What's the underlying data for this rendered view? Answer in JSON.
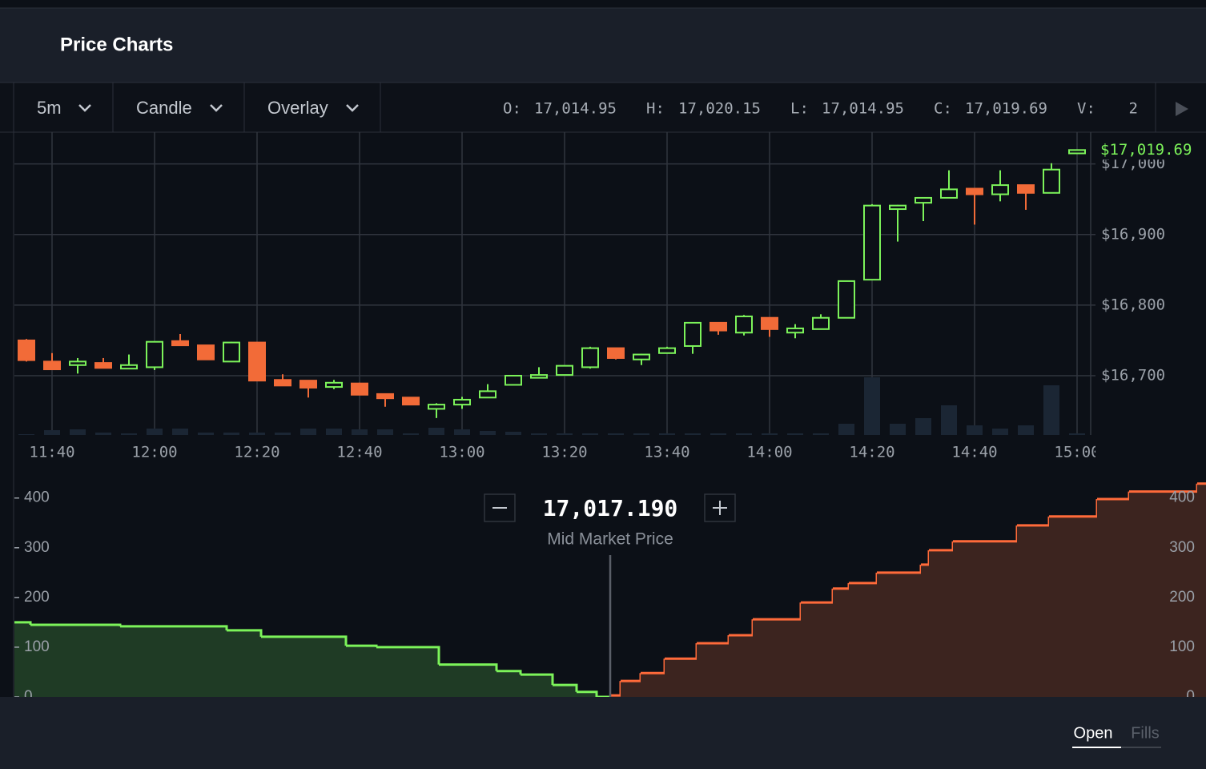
{
  "header": {
    "title": "Price Charts"
  },
  "toolbar": {
    "interval": "5m",
    "chart_type": "Candle",
    "overlay": "Overlay",
    "ohlcv": [
      {
        "key": "O:",
        "value": "17,014.95"
      },
      {
        "key": "H:",
        "value": "17,020.15"
      },
      {
        "key": "L:",
        "value": "17,014.95"
      },
      {
        "key": "C:",
        "value": "17,019.69"
      },
      {
        "key": "V:",
        "value": "2"
      }
    ]
  },
  "chart_data": [
    {
      "type": "candlestick",
      "categories": [
        null,
        "11:40",
        null,
        null,
        null,
        "12:00",
        null,
        null,
        null,
        "12:20",
        null,
        null,
        null,
        "12:40",
        null,
        null,
        null,
        "13:00",
        null,
        null,
        null,
        "13:20",
        null,
        null,
        null,
        "13:40",
        null,
        null,
        null,
        "14:00",
        null,
        null,
        null,
        "14:20",
        null,
        null,
        null,
        "14:40",
        null,
        null,
        null,
        "15:00"
      ],
      "open": [
        16750,
        16720,
        16715,
        16718,
        16710,
        16712,
        16749,
        16743,
        16720,
        16747,
        16694,
        16693,
        16684,
        16689,
        16674,
        16669,
        16653,
        16659,
        16669,
        16687,
        16697,
        16701,
        16712,
        16739,
        16723,
        16732,
        16742,
        16775,
        16761,
        16782,
        16761,
        16766,
        16782,
        16836,
        16936,
        16945,
        16952,
        16965,
        16957,
        16970,
        16959,
        17014.95
      ],
      "high": [
        16752,
        16732,
        16725,
        16725,
        16730,
        16748,
        16759,
        16743,
        16748,
        16747,
        16702,
        16693,
        16694,
        16690,
        16674,
        16669,
        16661,
        16670,
        16688,
        16700,
        16712,
        16714,
        16741,
        16739,
        16731,
        16741,
        16775,
        16775,
        16786,
        16782,
        16773,
        16787,
        16834,
        16943,
        16942,
        16952,
        16991,
        16965,
        16991,
        16970,
        17001,
        17020.15
      ],
      "low": [
        16720,
        16709,
        16703,
        16711,
        16710,
        16708,
        16743,
        16723,
        16720,
        16693,
        16686,
        16669,
        16681,
        16673,
        16656,
        16659,
        16640,
        16653,
        16669,
        16687,
        16697,
        16701,
        16710,
        16723,
        16715,
        16732,
        16731,
        16758,
        16757,
        16755,
        16753,
        16766,
        16782,
        16836,
        16890,
        16919,
        16952,
        16914,
        16947,
        16935,
        16959,
        17014.95
      ],
      "close": [
        16722,
        16709,
        16720,
        16711,
        16715,
        16748,
        16743,
        16723,
        16747,
        16693,
        16686,
        16683,
        16690,
        16673,
        16668,
        16659,
        16659,
        16666,
        16678,
        16700,
        16701,
        16714,
        16739,
        16725,
        16730,
        16739,
        16775,
        16764,
        16784,
        16766,
        16767,
        16782,
        16834,
        16941,
        16941,
        16952,
        16964,
        16957,
        16970,
        16959,
        16992,
        17019.69
      ],
      "volume": [
        1,
        6,
        7,
        3,
        2,
        8,
        8,
        3,
        3,
        3,
        3,
        8,
        8,
        7,
        7,
        2,
        9,
        7,
        5,
        4,
        2,
        2,
        2,
        2,
        2,
        2,
        2,
        2,
        2,
        2,
        2,
        2,
        14,
        72,
        14,
        21,
        37,
        12,
        8,
        12,
        62,
        2
      ],
      "ylim": [
        16616,
        17045
      ],
      "yticks": [
        {
          "value": 17000,
          "label": "$17,000"
        },
        {
          "value": 16900,
          "label": "$16,900"
        },
        {
          "value": 16800,
          "label": "$16,800"
        },
        {
          "value": 16700,
          "label": "$16,700"
        }
      ],
      "vlim": [
        0,
        378
      ],
      "last_price": {
        "value": 17019.69,
        "label": "$17,019.69"
      },
      "up_color": "#7cf35a",
      "down_color": "#f26b38",
      "volume_color": "#1b2634",
      "grid": true
    },
    {
      "type": "depth",
      "mid_price": {
        "value": 17017.19,
        "label": "17,017.190"
      },
      "mid_label": "Mid Market Price",
      "xlim": [
        17009.75,
        17024.63
      ],
      "ylim": [
        0,
        435
      ],
      "yticks": [
        0,
        100,
        200,
        300,
        400
      ],
      "series": [
        {
          "color": "#7cf35a",
          "fill": "#1f3b25",
          "x": [
            17009.75,
            17009.95,
            17011.07,
            17012.4,
            17012.83,
            17013.89,
            17014.27,
            17015.05,
            17015.77,
            17016.07,
            17016.47,
            17016.77,
            17017.02
          ],
          "values": [
            150,
            145,
            142,
            134,
            121,
            103,
            100,
            65,
            52,
            45,
            24,
            10,
            0
          ]
        },
        {
          "color": "#ff6a3a",
          "fill": "#3c241f",
          "x": [
            17017.19,
            17017.32,
            17017.57,
            17017.87,
            17018.27,
            17018.67,
            17018.97,
            17019.57,
            17019.97,
            17020.17,
            17020.52,
            17021.07,
            17021.17,
            17021.47,
            17022.27,
            17022.67,
            17023.27,
            17023.67,
            17024.52
          ],
          "values": [
            3,
            32,
            48,
            77,
            108,
            124,
            156,
            190,
            218,
            229,
            250,
            266,
            295,
            313,
            345,
            363,
            398,
            413,
            429
          ]
        }
      ]
    }
  ],
  "tabs": [
    "Open",
    "Fills"
  ]
}
